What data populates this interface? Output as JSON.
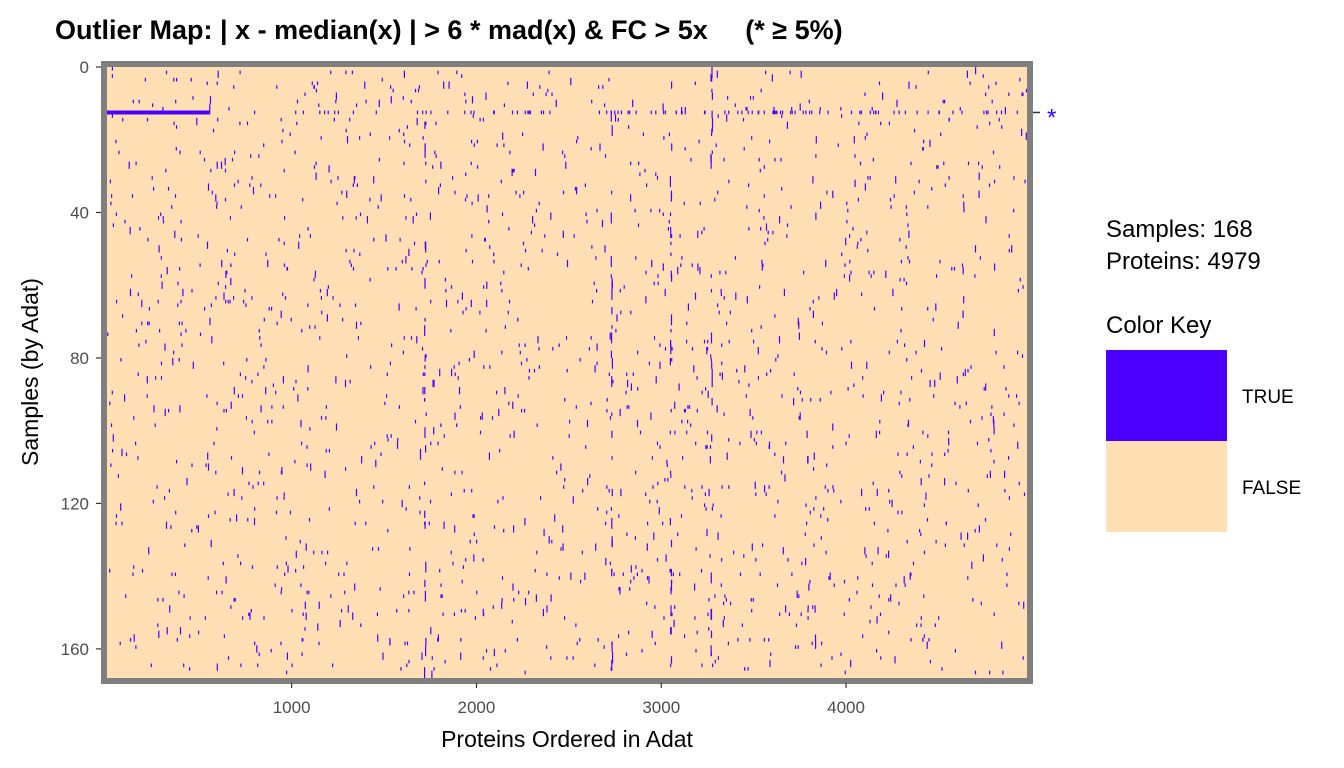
{
  "chart_data": {
    "type": "heatmap",
    "title": "Outlier Map: | x - median(x) | > 6 * mad(x) & FC > 5x     (* ≥ 5%)",
    "xlabel": "Proteins Ordered in Adat",
    "ylabel": "Samples (by Adat)",
    "x_ticks": [
      1000,
      2000,
      3000,
      4000
    ],
    "y_ticks": [
      0,
      40,
      80,
      120,
      160
    ],
    "xlim": [
      1,
      4979
    ],
    "ylim": [
      0,
      168
    ],
    "y_reversed": true,
    "n_samples": 168,
    "n_proteins": 4979,
    "flagged_samples": [
      {
        "sample": 12,
        "marker": "*"
      }
    ],
    "flagged_row_segment": {
      "sample": 12,
      "protein_start": 1,
      "protein_end": 560
    },
    "hot_columns": [
      1720,
      2730,
      3050,
      3270
    ],
    "legend": {
      "title": "Color Key",
      "entries": [
        {
          "label": "TRUE",
          "color": "#4B00FF"
        },
        {
          "label": "FALSE",
          "color": "#FFDFB3"
        }
      ]
    }
  },
  "info": {
    "samples_text": "Samples: 168",
    "proteins_text": "Proteins: 4979"
  },
  "colors": {
    "true": "#4B00FF",
    "false": "#FFDFB3",
    "frame": "#7F7F7F",
    "star": "#3300FF"
  }
}
